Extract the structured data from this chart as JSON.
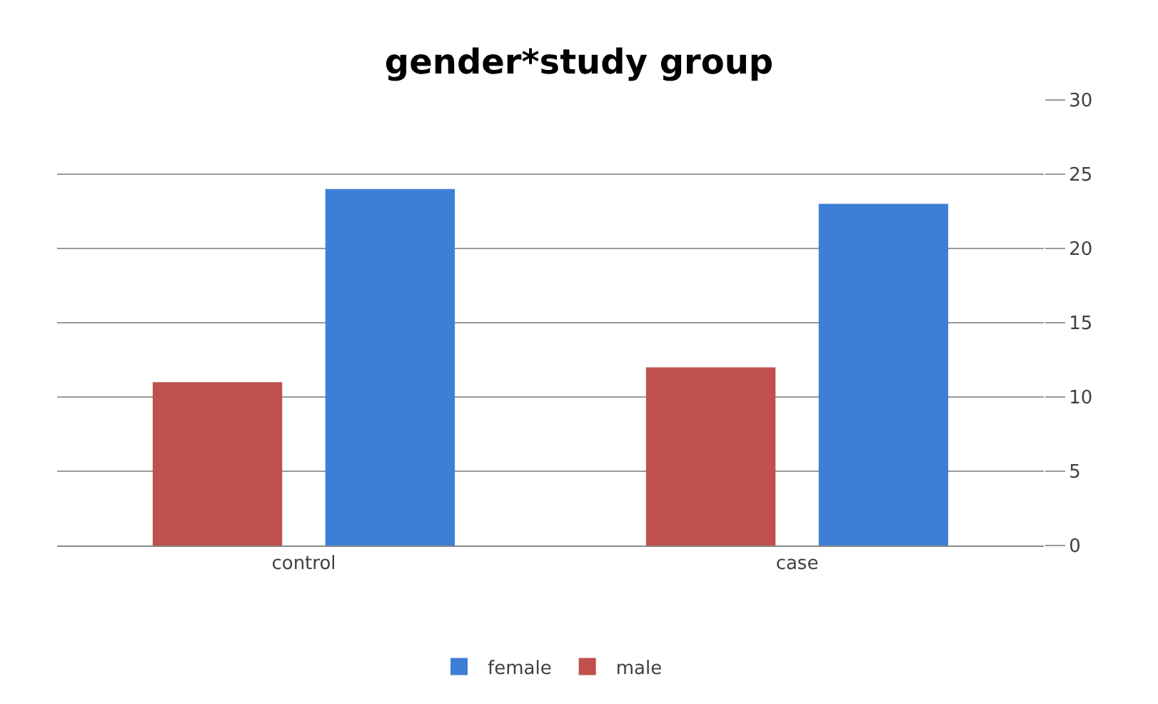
{
  "chart_data": {
    "type": "bar",
    "title": "gender*study group",
    "categories": [
      "control",
      "case"
    ],
    "series": [
      {
        "name": "male",
        "color": "#c0504d",
        "values": [
          11,
          12
        ]
      },
      {
        "name": "female",
        "color": "#3d7fd6",
        "values": [
          24,
          23
        ]
      }
    ],
    "ylim": [
      0,
      30
    ],
    "yticks": [
      0,
      5,
      10,
      15,
      20,
      25,
      30
    ],
    "grid": "y",
    "legend": "bottom"
  }
}
